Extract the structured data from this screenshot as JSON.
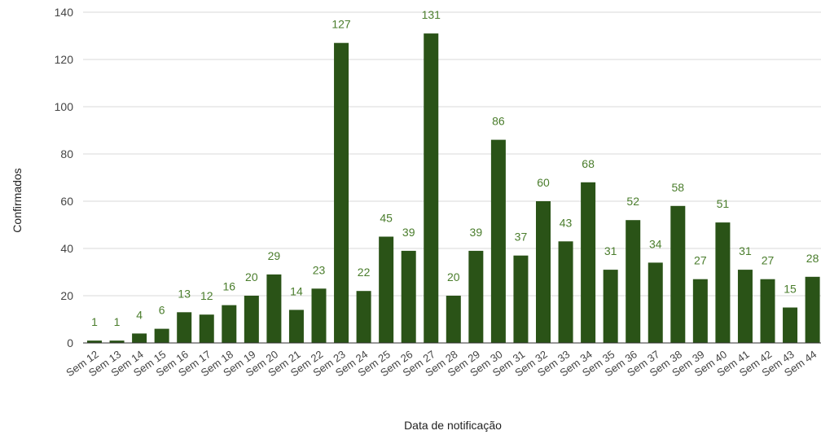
{
  "chart_data": {
    "type": "bar",
    "xlabel": "Data de notificação",
    "ylabel": "Confirmados",
    "ylim": [
      0,
      140
    ],
    "yticks": [
      0,
      20,
      40,
      60,
      80,
      100,
      120,
      140
    ],
    "grid": true,
    "legend": "none",
    "colors": {
      "bar": "#2a5317",
      "label": "#4a7d2c"
    },
    "categories": [
      "Sem 12",
      "Sem 13",
      "Sem 14",
      "Sem 15",
      "Sem 16",
      "Sem 17",
      "Sem 18",
      "Sem 19",
      "Sem 20",
      "Sem 21",
      "Sem 22",
      "Sem 23",
      "Sem 24",
      "Sem 25",
      "Sem 26",
      "Sem 27",
      "Sem 28",
      "Sem 29",
      "Sem 30",
      "Sem 31",
      "Sem 32",
      "Sem 33",
      "Sem 34",
      "Sem 35",
      "Sem 36",
      "Sem 37",
      "Sem 38",
      "Sem 39",
      "Sem 40",
      "Sem 41",
      "Sem 42",
      "Sem 43",
      "Sem 44"
    ],
    "values": [
      1,
      1,
      4,
      6,
      13,
      12,
      16,
      20,
      29,
      14,
      23,
      127,
      22,
      45,
      39,
      131,
      20,
      39,
      86,
      37,
      60,
      43,
      68,
      31,
      52,
      34,
      58,
      27,
      51,
      31,
      27,
      15,
      28
    ]
  }
}
